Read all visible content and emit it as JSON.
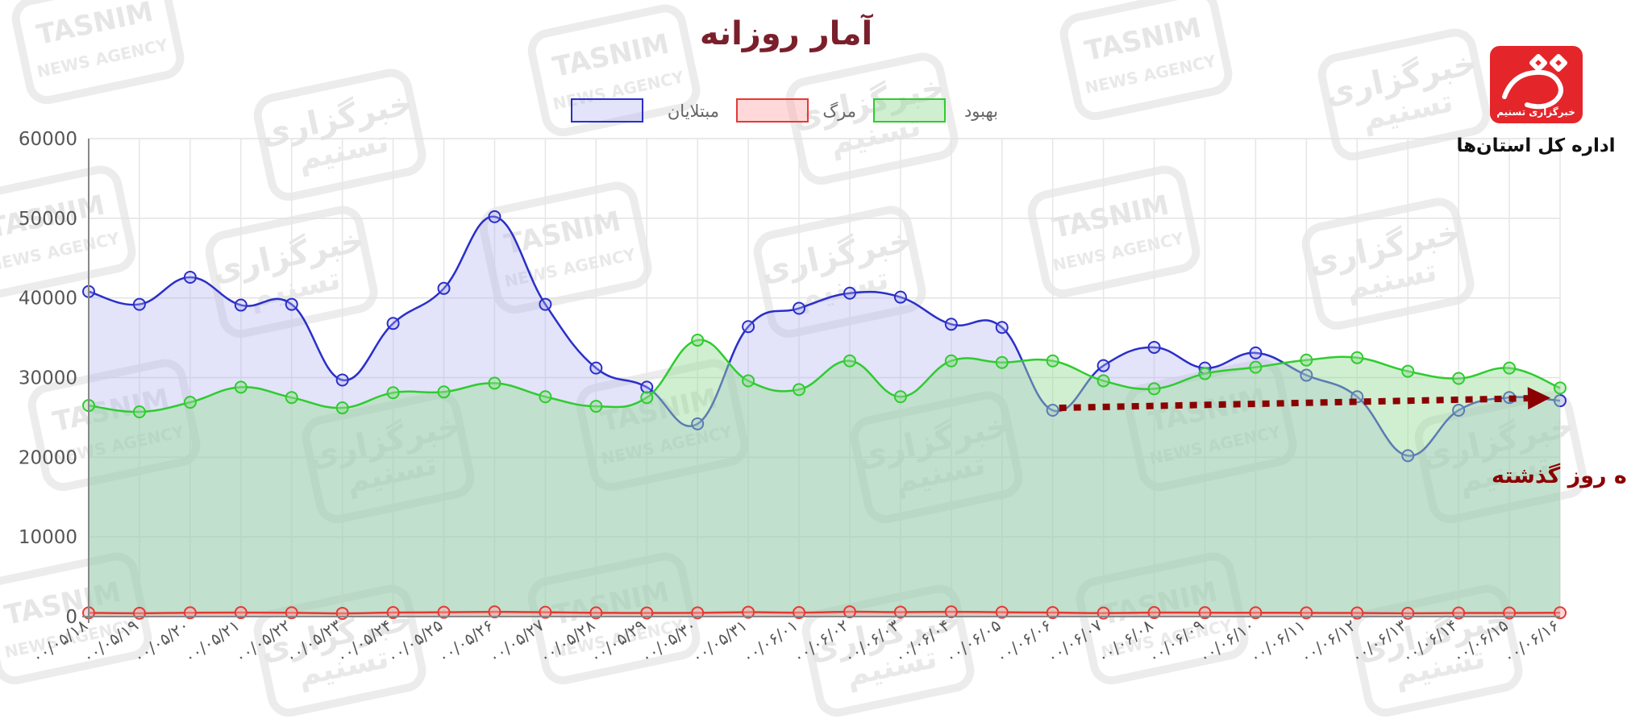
{
  "chart_data": {
    "type": "area",
    "title": "آمار روزانه",
    "x": [
      "۰۰/۰۵/۱۸",
      "۰۰/۰۵/۱۹",
      "۰۰/۰۵/۲۰",
      "۰۰/۰۵/۲۱",
      "۰۰/۰۵/۲۲",
      "۰۰/۰۵/۲۳",
      "۰۰/۰۵/۲۴",
      "۰۰/۰۵/۲۵",
      "۰۰/۰۵/۲۶",
      "۰۰/۰۵/۲۷",
      "۰۰/۰۵/۲۸",
      "۰۰/۰۵/۲۹",
      "۰۰/۰۵/۳۰",
      "۰۰/۰۵/۳۱",
      "۰۰/۰۶/۰۱",
      "۰۰/۰۶/۰۲",
      "۰۰/۰۶/۰۳",
      "۰۰/۰۶/۰۴",
      "۰۰/۰۶/۰۵",
      "۰۰/۰۶/۰۶",
      "۰۰/۰۶/۰۷",
      "۰۰/۰۶/۰۸",
      "۰۰/۰۶/۰۹",
      "۰۰/۰۶/۱۰",
      "۰۰/۰۶/۱۱",
      "۰۰/۰۶/۱۲",
      "۰۰/۰۶/۱۳",
      "۰۰/۰۶/۱۴",
      "۰۰/۰۶/۱۵",
      "۰۰/۰۶/۱۶"
    ],
    "series": [
      {
        "name": "مبتلایان",
        "color": "#2a2fc8",
        "fill": "rgba(175,175,240,0.35)",
        "values": [
          40800,
          39200,
          42600,
          39100,
          39200,
          29700,
          36800,
          41200,
          50200,
          39200,
          31200,
          28800,
          24200,
          36400,
          38700,
          40600,
          40100,
          36700,
          36300,
          25900,
          31500,
          33800,
          31200,
          33100,
          30300,
          27600,
          20200,
          25900,
          27500,
          27100
        ]
      },
      {
        "name": "مرگ",
        "color": "#e53935",
        "fill": "rgba(255,170,170,0.45)",
        "values": [
          470,
          420,
          480,
          500,
          480,
          410,
          500,
          540,
          590,
          540,
          470,
          460,
          470,
          550,
          500,
          600,
          560,
          600,
          540,
          500,
          440,
          500,
          490,
          480,
          470,
          450,
          420,
          450,
          460,
          480
        ]
      },
      {
        "name": "بهبود",
        "color": "#2ecc2e",
        "fill": "rgba(150,220,150,0.45)",
        "values": [
          26500,
          25700,
          26900,
          28800,
          27500,
          26200,
          28100,
          28200,
          29300,
          27600,
          26400,
          27500,
          34700,
          29600,
          28500,
          32100,
          27600,
          32100,
          31900,
          32100,
          29600,
          28600,
          30500,
          31300,
          32200,
          32500,
          30800,
          29900,
          31200,
          28700
        ]
      }
    ],
    "ylim": [
      0,
      60000
    ],
    "yticks": [
      0,
      10000,
      20000,
      30000,
      40000,
      50000,
      60000
    ],
    "grid": true,
    "legend_position": "top",
    "annotation": {
      "text": "صعود زیرپوستی نرخ ابتلا در ده روز گذشته",
      "arrow_from_index": 19,
      "arrow_to_index": 29,
      "color": "#8b0000"
    }
  },
  "brand": {
    "logo_text": "خبرگزاری تسنیم",
    "subtitle": "اداره کل استان‌ها",
    "accent": "#e4262b"
  },
  "watermark": {
    "latin": "TASNIM",
    "latin_sub": "NEWS AGENCY",
    "persian_1": "خبرگزاری",
    "persian_2": "تسنیم"
  }
}
